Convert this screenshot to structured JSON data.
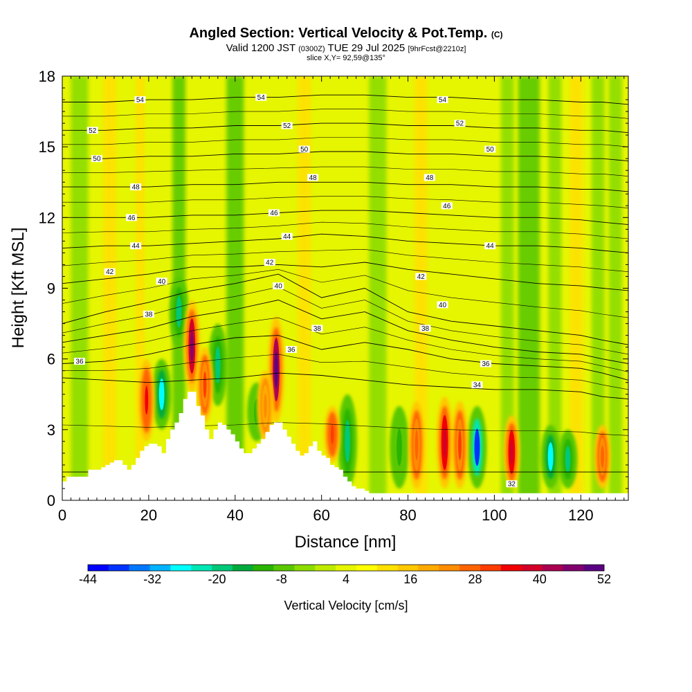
{
  "header": {
    "title": "Angled Section: Vertical Velocity & Pot.Temp.",
    "copyright": "(C)",
    "subtitle_valid": "Valid 1200 JST",
    "subtitle_zulu": "(0300Z)",
    "subtitle_date": "TUE 29 Jul 2025",
    "subtitle_fcst": "[9hrFcst@2210z]",
    "slice": "slice X,Y= 92,59@135°"
  },
  "chart_data": {
    "type": "heatmap",
    "xlabel": "Distance [nm]",
    "ylabel": "Height [Kft MSL]",
    "xlim": [
      0,
      131
    ],
    "ylim": [
      0,
      18
    ],
    "x_ticks": [
      "0",
      "20",
      "40",
      "60",
      "80",
      "100",
      "120"
    ],
    "y_ticks": [
      "0",
      "3",
      "6",
      "9",
      "12",
      "15",
      "18"
    ],
    "colorbar": {
      "label": "Vertical Velocity [cm/s]",
      "tick_labels": [
        "-44",
        "-32",
        "-20",
        "-8",
        "4",
        "16",
        "28",
        "40",
        "52"
      ],
      "colors": [
        "#0000ff",
        "#0033ff",
        "#0077ff",
        "#00b4ff",
        "#00ffff",
        "#00e6b4",
        "#00c878",
        "#00aa3c",
        "#28b400",
        "#5ac800",
        "#8cdc00",
        "#beeb00",
        "#e6f500",
        "#ffff00",
        "#ffe100",
        "#ffc800",
        "#ffaa00",
        "#ff8c00",
        "#ff6400",
        "#ff3c00",
        "#f00000",
        "#d20028",
        "#aa0050",
        "#82006e",
        "#5a0082"
      ]
    },
    "terrain": [
      [
        0,
        0.8
      ],
      [
        1,
        1.0
      ],
      [
        5,
        1.0
      ],
      [
        6,
        1.3
      ],
      [
        8,
        1.3
      ],
      [
        9,
        1.4
      ],
      [
        10,
        1.5
      ],
      [
        11,
        1.6
      ],
      [
        12,
        1.7
      ],
      [
        13,
        1.7
      ],
      [
        14,
        1.5
      ],
      [
        15,
        1.3
      ],
      [
        16,
        1.5
      ],
      [
        17,
        1.8
      ],
      [
        18,
        2.1
      ],
      [
        19,
        2.3
      ],
      [
        20,
        2.4
      ],
      [
        21,
        2.4
      ],
      [
        22,
        2.3
      ],
      [
        23,
        2.0
      ],
      [
        24,
        2.6
      ],
      [
        25,
        3.0
      ],
      [
        26,
        3.3
      ],
      [
        27,
        3.7
      ],
      [
        28,
        4.3
      ],
      [
        29,
        4.6
      ],
      [
        30,
        4.6
      ],
      [
        31,
        4.0
      ],
      [
        32,
        3.6
      ],
      [
        33,
        3.0
      ],
      [
        34,
        2.6
      ],
      [
        35,
        3.0
      ],
      [
        36,
        3.3
      ],
      [
        37,
        3.2
      ],
      [
        38,
        3.0
      ],
      [
        39,
        2.8
      ],
      [
        40,
        2.5
      ],
      [
        41,
        2.2
      ],
      [
        42,
        2.0
      ],
      [
        43,
        2.0
      ],
      [
        44,
        2.2
      ],
      [
        45,
        2.4
      ],
      [
        46,
        2.6
      ],
      [
        47,
        2.9
      ],
      [
        48,
        3.2
      ],
      [
        49,
        3.3
      ],
      [
        50,
        3.3
      ],
      [
        51,
        3.0
      ],
      [
        52,
        2.7
      ],
      [
        53,
        2.4
      ],
      [
        54,
        2.1
      ],
      [
        55,
        1.9
      ],
      [
        56,
        2.0
      ],
      [
        57,
        2.3
      ],
      [
        58,
        2.5
      ],
      [
        59,
        2.1
      ],
      [
        60,
        1.9
      ],
      [
        61,
        1.8
      ],
      [
        62,
        1.5
      ],
      [
        63,
        1.4
      ],
      [
        64,
        1.3
      ],
      [
        65,
        1.0
      ],
      [
        66,
        0.8
      ],
      [
        67,
        0.6
      ],
      [
        68,
        0.5
      ],
      [
        70,
        0.4
      ],
      [
        71,
        0.3
      ],
      [
        73,
        0.3
      ],
      [
        131,
        0.3
      ]
    ],
    "theta_contours": [
      {
        "label": "32",
        "y": [
          1.2,
          1.2,
          1.2,
          1.2,
          1.2,
          1.2,
          1.2,
          1.2,
          1.2,
          1.2,
          1.2,
          1.2,
          1.2,
          1.2,
          1.2
        ]
      },
      {
        "label": "34",
        "y": [
          5.2,
          5.1,
          5.0,
          5.1,
          5.2,
          5.4,
          5.3,
          5.1,
          4.9,
          4.8,
          4.7,
          4.7,
          4.6,
          4.4,
          4.3
        ]
      },
      {
        "label": "36",
        "y": [
          5.8,
          5.9,
          6.2,
          6.6,
          6.9,
          7.0,
          6.4,
          6.7,
          6.4,
          6.0,
          5.8,
          5.7,
          5.6,
          5.4,
          5.1
        ]
      },
      {
        "label": "38",
        "y": [
          6.7,
          7.0,
          7.3,
          7.8,
          8.1,
          8.5,
          7.7,
          8.0,
          7.2,
          6.8,
          6.5,
          6.3,
          6.2,
          6.0,
          5.8
        ]
      },
      {
        "label": "40",
        "y": [
          7.5,
          8.0,
          8.4,
          8.9,
          9.2,
          9.6,
          8.6,
          9.0,
          8.0,
          7.6,
          7.4,
          7.2,
          7.0,
          6.8,
          6.6
        ]
      },
      {
        "label": "42",
        "y": [
          9.2,
          9.4,
          9.6,
          9.9,
          9.9,
          10.0,
          9.9,
          10.1,
          9.8,
          9.6,
          9.4,
          9.2,
          9.1,
          9.0,
          8.9
        ]
      },
      {
        "label": "44",
        "y": [
          10.7,
          10.8,
          10.8,
          10.9,
          11.0,
          11.1,
          11.3,
          11.2,
          11.0,
          10.9,
          10.8,
          10.8,
          10.7,
          10.6,
          10.5
        ]
      },
      {
        "label": "46",
        "y": [
          12.0,
          12.0,
          12.0,
          12.1,
          12.1,
          12.2,
          12.3,
          12.3,
          12.2,
          12.1,
          12.0,
          12.0,
          11.9,
          11.8,
          11.7
        ]
      },
      {
        "label": "48",
        "y": [
          13.3,
          13.3,
          13.3,
          13.4,
          13.4,
          13.5,
          13.5,
          13.5,
          13.4,
          13.4,
          13.3,
          13.3,
          13.2,
          13.2,
          13.1
        ]
      },
      {
        "label": "50",
        "y": [
          14.5,
          14.5,
          14.6,
          14.6,
          14.7,
          14.7,
          14.8,
          14.8,
          14.7,
          14.7,
          14.6,
          14.6,
          14.5,
          14.5,
          14.4
        ]
      },
      {
        "label": "52",
        "y": [
          15.7,
          15.7,
          15.8,
          15.8,
          15.9,
          15.9,
          16.0,
          16.0,
          15.9,
          15.9,
          15.8,
          15.8,
          15.7,
          15.7,
          15.6
        ]
      },
      {
        "label": "54",
        "y": [
          16.9,
          16.9,
          17.0,
          17.0,
          17.1,
          17.1,
          17.2,
          17.2,
          17.1,
          17.1,
          17.0,
          17.0,
          16.9,
          16.9,
          16.8
        ]
      }
    ],
    "contour_x": [
      0,
      10,
      20,
      30,
      40,
      50,
      60,
      70,
      80,
      90,
      100,
      110,
      120,
      125,
      131
    ],
    "contour_labels": [
      {
        "text": "54",
        "x": 18,
        "y": 17.0
      },
      {
        "text": "54",
        "x": 46,
        "y": 17.1
      },
      {
        "text": "54",
        "x": 88,
        "y": 17.0
      },
      {
        "text": "52",
        "x": 7,
        "y": 15.7
      },
      {
        "text": "52",
        "x": 52,
        "y": 15.9
      },
      {
        "text": "52",
        "x": 92,
        "y": 16.0
      },
      {
        "text": "50",
        "x": 8,
        "y": 14.5
      },
      {
        "text": "50",
        "x": 56,
        "y": 14.9
      },
      {
        "text": "50",
        "x": 99,
        "y": 14.9
      },
      {
        "text": "48",
        "x": 17,
        "y": 13.3
      },
      {
        "text": "48",
        "x": 58,
        "y": 13.7
      },
      {
        "text": "48",
        "x": 85,
        "y": 13.7
      },
      {
        "text": "46",
        "x": 16,
        "y": 12.0
      },
      {
        "text": "46",
        "x": 49,
        "y": 12.2
      },
      {
        "text": "46",
        "x": 89,
        "y": 12.5
      },
      {
        "text": "44",
        "x": 17,
        "y": 10.8
      },
      {
        "text": "44",
        "x": 52,
        "y": 11.2
      },
      {
        "text": "44",
        "x": 99,
        "y": 10.8
      },
      {
        "text": "42",
        "x": 11,
        "y": 9.7
      },
      {
        "text": "42",
        "x": 48,
        "y": 10.1
      },
      {
        "text": "42",
        "x": 83,
        "y": 9.5
      },
      {
        "text": "40",
        "x": 23,
        "y": 9.3
      },
      {
        "text": "40",
        "x": 50,
        "y": 9.1
      },
      {
        "text": "40",
        "x": 88,
        "y": 8.3
      },
      {
        "text": "38",
        "x": 20,
        "y": 7.9
      },
      {
        "text": "38",
        "x": 59,
        "y": 7.3
      },
      {
        "text": "38",
        "x": 84,
        "y": 7.3
      },
      {
        "text": "36",
        "x": 4,
        "y": 5.9
      },
      {
        "text": "36",
        "x": 53,
        "y": 6.4
      },
      {
        "text": "36",
        "x": 98,
        "y": 5.8
      },
      {
        "text": "34",
        "x": 96,
        "y": 4.9
      },
      {
        "text": "32",
        "x": 104,
        "y": 0.7
      }
    ],
    "updraft_cores": [
      {
        "x": 19.5,
        "y0": 2.5,
        "y1": 6.0,
        "v": 34
      },
      {
        "x": 30,
        "y0": 4.6,
        "y1": 8.5,
        "v": 48
      },
      {
        "x": 33,
        "y0": 3.3,
        "y1": 6.5,
        "v": 30
      },
      {
        "x": 49.5,
        "y0": 3.3,
        "y1": 7.8,
        "v": 52
      },
      {
        "x": 47,
        "y0": 2.5,
        "y1": 5.5,
        "v": 22
      },
      {
        "x": 62.5,
        "y0": 1.6,
        "y1": 4.0,
        "v": 32
      },
      {
        "x": 82,
        "y0": 0.5,
        "y1": 4.2,
        "v": 28
      },
      {
        "x": 88.5,
        "y0": 0.5,
        "y1": 4.4,
        "v": 40
      },
      {
        "x": 92,
        "y0": 0.5,
        "y1": 4.2,
        "v": 30
      },
      {
        "x": 104,
        "y0": 0.5,
        "y1": 3.6,
        "v": 40
      },
      {
        "x": 125,
        "y0": 0.5,
        "y1": 3.2,
        "v": 28
      }
    ],
    "downdraft_cores": [
      {
        "x": 23,
        "y0": 3.0,
        "y1": 6.0,
        "v": -28
      },
      {
        "x": 27,
        "y0": 6.5,
        "y1": 9.5,
        "v": -20
      },
      {
        "x": 36,
        "y0": 4.0,
        "y1": 7.5,
        "v": -20
      },
      {
        "x": 45,
        "y0": 2.5,
        "y1": 5.0,
        "v": -12
      },
      {
        "x": 66,
        "y0": 0.5,
        "y1": 4.5,
        "v": -20
      },
      {
        "x": 78,
        "y0": 0.5,
        "y1": 4.0,
        "v": -12
      },
      {
        "x": 96,
        "y0": 0.5,
        "y1": 4.0,
        "v": -40
      },
      {
        "x": 113,
        "y0": 0.5,
        "y1": 3.2,
        "v": -28
      },
      {
        "x": 117,
        "y0": 0.5,
        "y1": 3.0,
        "v": -20
      }
    ],
    "vertical_bands": [
      {
        "x": 4,
        "w": 4,
        "v": -4
      },
      {
        "x": 11,
        "w": 3,
        "v": 10
      },
      {
        "x": 18,
        "w": 2,
        "v": 12
      },
      {
        "x": 27,
        "w": 3,
        "v": -10
      },
      {
        "x": 40,
        "w": 4,
        "v": -8
      },
      {
        "x": 56,
        "w": 3,
        "v": 10
      },
      {
        "x": 73,
        "w": 4,
        "v": -6
      },
      {
        "x": 83,
        "w": 3,
        "v": 10
      },
      {
        "x": 103,
        "w": 3,
        "v": -4
      },
      {
        "x": 108,
        "w": 5,
        "v": -10
      },
      {
        "x": 114,
        "w": 3,
        "v": -6
      },
      {
        "x": 119,
        "w": 3,
        "v": 10
      },
      {
        "x": 124,
        "w": 3,
        "v": -6
      },
      {
        "x": 128,
        "w": 3,
        "v": -4
      }
    ]
  }
}
